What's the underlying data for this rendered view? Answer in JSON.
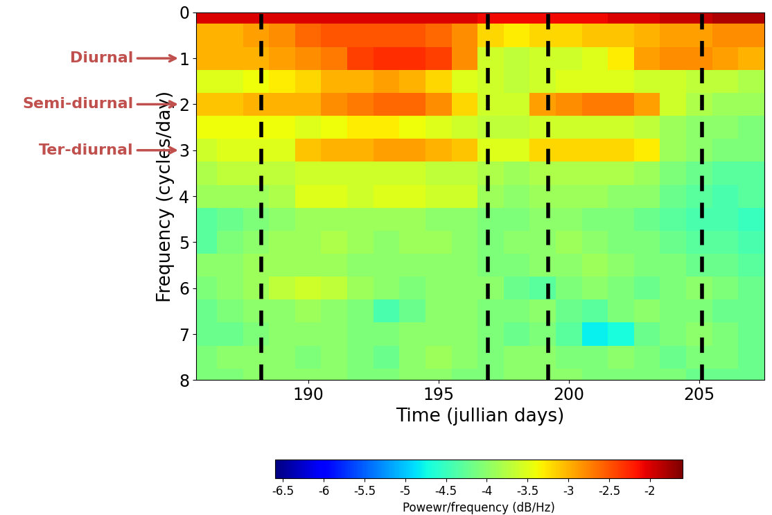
{
  "chart_data": {
    "type": "heatmap",
    "x_label": "Time (jullian days)",
    "y_label": "Frequency (cycles/day)",
    "xlim": [
      185.7,
      207.5
    ],
    "xticks": [
      190,
      195,
      200,
      205
    ],
    "ylim": [
      8,
      0
    ],
    "yticks": [
      0,
      1,
      2,
      3,
      4,
      5,
      6,
      7,
      8
    ],
    "x": [
      186,
      187,
      188,
      189,
      190,
      191,
      192,
      193,
      194,
      195,
      196,
      197,
      198,
      199,
      200,
      201,
      202,
      203,
      204,
      205,
      206,
      207
    ],
    "y": [
      0,
      0.5,
      1,
      1.5,
      2,
      2.5,
      3,
      3.5,
      4,
      4.5,
      5,
      5.5,
      6,
      6.5,
      7,
      7.5,
      8
    ],
    "cells": [
      [
        -2.0,
        -2.0,
        -2.0,
        -2.0,
        -2.0,
        -2.0,
        -2.0,
        -2.0,
        -2.0,
        -2.0,
        -2.0,
        -2.1,
        -2.1,
        -2.1,
        -2.1,
        -2.1,
        -2.0,
        -2.0,
        -1.9,
        -1.9,
        -1.8,
        -1.8
      ],
      [
        -3.0,
        -3.0,
        -2.9,
        -2.8,
        -2.6,
        -2.5,
        -2.5,
        -2.5,
        -2.5,
        -2.6,
        -2.8,
        -3.2,
        -3.3,
        -3.2,
        -3.2,
        -3.1,
        -3.1,
        -3.0,
        -2.9,
        -2.9,
        -2.8,
        -2.8
      ],
      [
        -3.0,
        -3.0,
        -3.0,
        -2.9,
        -2.8,
        -2.7,
        -2.4,
        -2.3,
        -2.3,
        -2.4,
        -2.8,
        -3.6,
        -3.7,
        -3.6,
        -3.6,
        -3.5,
        -3.3,
        -2.9,
        -2.8,
        -2.8,
        -2.9,
        -3.0
      ],
      [
        -3.5,
        -3.5,
        -3.4,
        -3.3,
        -3.2,
        -3.0,
        -3.0,
        -2.9,
        -3.0,
        -3.2,
        -3.5,
        -3.6,
        -3.7,
        -3.6,
        -3.5,
        -3.5,
        -3.5,
        -3.6,
        -3.6,
        -3.7,
        -3.7,
        -3.8
      ],
      [
        -3.1,
        -3.1,
        -3.0,
        -3.0,
        -3.0,
        -2.8,
        -2.7,
        -2.6,
        -2.6,
        -2.8,
        -3.2,
        -3.6,
        -3.6,
        -2.9,
        -2.8,
        -2.7,
        -2.7,
        -2.9,
        -3.6,
        -3.8,
        -3.9,
        -3.9
      ],
      [
        -3.4,
        -3.4,
        -3.4,
        -3.4,
        -3.5,
        -3.4,
        -3.3,
        -3.3,
        -3.4,
        -3.5,
        -3.6,
        -3.7,
        -3.7,
        -3.6,
        -3.6,
        -3.6,
        -3.6,
        -3.7,
        -3.9,
        -4.0,
        -4.0,
        -4.1
      ],
      [
        -3.6,
        -3.5,
        -3.5,
        -3.5,
        -3.1,
        -3.0,
        -3.0,
        -2.9,
        -2.9,
        -3.0,
        -3.1,
        -3.5,
        -3.5,
        -3.2,
        -3.2,
        -3.2,
        -3.2,
        -3.3,
        -3.9,
        -4.0,
        -4.1,
        -4.1
      ],
      [
        -3.8,
        -3.7,
        -3.7,
        -3.7,
        -3.6,
        -3.6,
        -3.6,
        -3.6,
        -3.6,
        -3.7,
        -3.7,
        -3.8,
        -3.9,
        -3.8,
        -3.8,
        -3.8,
        -3.8,
        -3.9,
        -4.1,
        -4.2,
        -4.3,
        -4.3
      ],
      [
        -3.9,
        -3.9,
        -3.9,
        -3.8,
        -3.5,
        -3.5,
        -3.6,
        -3.5,
        -3.5,
        -3.6,
        -3.6,
        -3.9,
        -4.0,
        -3.9,
        -3.9,
        -3.9,
        -4.0,
        -4.0,
        -4.2,
        -4.3,
        -4.4,
        -4.3
      ],
      [
        -4.3,
        -4.2,
        -4.1,
        -4.0,
        -3.9,
        -3.9,
        -3.9,
        -3.9,
        -3.9,
        -4.0,
        -4.0,
        -4.1,
        -4.1,
        -4.0,
        -4.0,
        -4.1,
        -4.1,
        -4.2,
        -4.3,
        -4.4,
        -4.4,
        -4.5
      ],
      [
        -4.3,
        -4.1,
        -4.0,
        -3.9,
        -3.9,
        -3.8,
        -3.9,
        -4.0,
        -3.9,
        -3.9,
        -4.0,
        -4.1,
        -4.0,
        -4.0,
        -3.9,
        -4.0,
        -4.1,
        -4.1,
        -4.2,
        -4.3,
        -4.3,
        -4.4
      ],
      [
        -4.0,
        -4.0,
        -3.9,
        -3.9,
        -3.9,
        -3.9,
        -4.0,
        -4.0,
        -4.0,
        -4.0,
        -4.0,
        -4.1,
        -4.1,
        -4.0,
        -4.0,
        -3.9,
        -4.0,
        -4.1,
        -4.1,
        -4.2,
        -4.2,
        -4.3
      ],
      [
        -4.1,
        -4.0,
        -3.9,
        -3.7,
        -3.6,
        -3.7,
        -3.9,
        -4.0,
        -4.1,
        -4.0,
        -4.0,
        -4.0,
        -4.2,
        -4.3,
        -4.1,
        -4.0,
        -4.1,
        -4.2,
        -4.1,
        -4.0,
        -4.1,
        -4.2
      ],
      [
        -4.2,
        -4.1,
        -4.0,
        -4.0,
        -3.9,
        -4.0,
        -4.1,
        -4.4,
        -4.2,
        -4.0,
        -4.0,
        -4.1,
        -4.1,
        -4.0,
        -4.2,
        -4.3,
        -4.1,
        -4.0,
        -4.1,
        -4.1,
        -4.2,
        -4.2
      ],
      [
        -4.2,
        -4.2,
        -4.1,
        -4.0,
        -4.0,
        -4.0,
        -4.1,
        -4.1,
        -4.0,
        -4.0,
        -4.0,
        -4.1,
        -4.2,
        -4.1,
        -4.3,
        -4.8,
        -4.7,
        -4.2,
        -4.1,
        -4.0,
        -4.1,
        -4.2
      ],
      [
        -4.1,
        -4.0,
        -4.0,
        -4.0,
        -4.1,
        -4.0,
        -4.1,
        -4.2,
        -4.0,
        -3.9,
        -4.0,
        -4.1,
        -4.0,
        -4.0,
        -4.1,
        -4.1,
        -4.0,
        -4.1,
        -4.2,
        -4.1,
        -4.1,
        -4.2
      ],
      [
        -4.1,
        -4.1,
        -4.0,
        -4.0,
        -4.0,
        -4.0,
        -4.1,
        -4.1,
        -4.0,
        -4.0,
        -4.1,
        -4.1,
        -4.0,
        -4.0,
        -4.0,
        -4.1,
        -4.1,
        -4.1,
        -4.1,
        -4.2,
        -4.2,
        -4.2
      ]
    ],
    "events": [
      188.2,
      196.9,
      199.2,
      205.1
    ],
    "annotations": [
      {
        "text": "Diurnal",
        "y": 1
      },
      {
        "text": "Semi-diurnal",
        "y": 2
      },
      {
        "text": "Ter-diurnal",
        "y": 3
      }
    ],
    "colorbar": {
      "label": "Powewr/frequency (dB/Hz)",
      "range": [
        -6.6,
        -1.6
      ],
      "ticks": [
        -6.5,
        -6,
        -5.5,
        -5,
        -4.5,
        -4,
        -3.5,
        -3,
        -2.5,
        -2
      ]
    }
  }
}
